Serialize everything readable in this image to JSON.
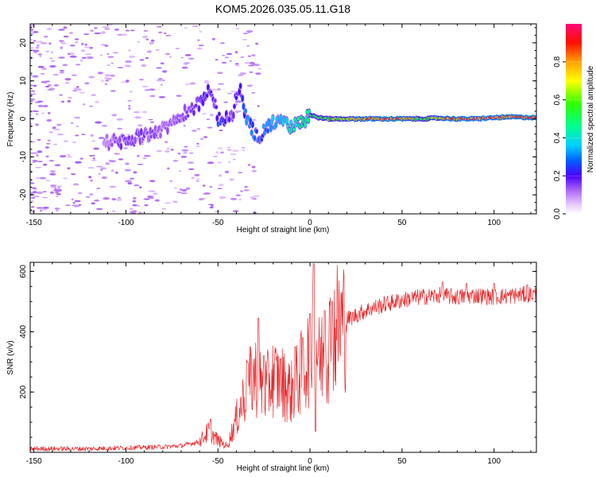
{
  "title": "KOM5.2026.035.05.11.G18",
  "colors": {
    "snr_line": "#e8282b",
    "spectrum_palette": [
      "#ffffff",
      "#d9b8f5",
      "#a56bf0",
      "#6a1fe0",
      "#2400ff",
      "#0070ff",
      "#00c8ff",
      "#00ffaa",
      "#3cff00",
      "#ffff00",
      "#ffa000",
      "#ff0000",
      "#ff0a78"
    ]
  },
  "chart_data": [
    {
      "id": "spectrogram",
      "type": "heatmap",
      "title": "KOM5.2026.035.05.11.G18",
      "xlabel": "Height of straight line (km)",
      "ylabel": "Frequency (Hz)",
      "xlim": [
        -152,
        123
      ],
      "ylim": [
        -25,
        25
      ],
      "xticks": [
        -150,
        -100,
        -50,
        0,
        50,
        100
      ],
      "xtick_labels": [
        "-150",
        "-100",
        "-50",
        "0",
        "50",
        "100"
      ],
      "yticks": [
        -20,
        -10,
        0,
        10,
        20
      ],
      "ytick_labels": [
        "-20",
        "-10",
        "0",
        "10",
        "20"
      ],
      "ridge": {
        "x": [
          -110,
          -100,
          -90,
          -80,
          -70,
          -60,
          -55,
          -52,
          -50,
          -45,
          -42,
          -40,
          -38,
          -35,
          -30,
          -28,
          -25,
          -20,
          -15,
          -10,
          -5,
          0,
          5,
          10,
          20,
          30,
          40,
          50,
          60,
          70,
          80,
          90,
          100,
          110,
          123
        ],
        "y": [
          -6,
          -6,
          -4,
          -3,
          1,
          4,
          7,
          5,
          0,
          0,
          0,
          7,
          8,
          1,
          -4,
          -5,
          -3,
          -1,
          -1,
          -2,
          -1,
          1,
          0.3,
          0,
          0,
          0,
          0,
          0,
          0,
          0.2,
          0,
          0,
          0.3,
          0.5,
          0.3
        ],
        "amplitude": [
          0.12,
          0.18,
          0.15,
          0.14,
          0.15,
          0.2,
          0.22,
          0.16,
          0.25,
          0.2,
          0.15,
          0.22,
          0.2,
          0.3,
          0.3,
          0.28,
          0.3,
          0.35,
          0.4,
          0.45,
          0.5,
          0.52,
          0.58,
          0.62,
          0.7,
          0.85,
          0.9,
          0.9,
          0.55,
          0.75,
          0.9,
          0.92,
          0.88,
          0.9,
          0.88
        ]
      },
      "colorbar": {
        "label": "Normalized spectral amplitude",
        "range": [
          0,
          1
        ],
        "ticks": [
          0,
          0.2,
          0.4,
          0.6,
          0.8
        ],
        "tick_labels": [
          "0.0",
          "0.2",
          "0.4",
          "0.6",
          "0.8"
        ]
      }
    },
    {
      "id": "snr",
      "type": "line",
      "xlabel": "Height of straight line (km)",
      "ylabel": "SNR (v/v)",
      "xlim": [
        -152,
        123
      ],
      "ylim": [
        0,
        630
      ],
      "xticks": [
        -150,
        -100,
        -50,
        0,
        50,
        100
      ],
      "xtick_labels": [
        "-150",
        "-100",
        "-50",
        "0",
        "50",
        "100"
      ],
      "yticks": [
        200,
        400,
        600
      ],
      "ytick_labels": [
        "200",
        "400",
        "600"
      ],
      "series": [
        {
          "name": "SNR",
          "envelope_x": [
            -152,
            -120,
            -100,
            -80,
            -70,
            -60,
            -55,
            -50,
            -45,
            -40,
            -35,
            -30,
            -25,
            -20,
            -15,
            -10,
            -5,
            0,
            2,
            5,
            10,
            15,
            20,
            25,
            30,
            40,
            50,
            60,
            70,
            80,
            90,
            100,
            110,
            123
          ],
          "envelope_y": [
            12,
            12,
            15,
            18,
            22,
            35,
            70,
            40,
            20,
            110,
            200,
            260,
            200,
            250,
            230,
            200,
            260,
            330,
            440,
            300,
            360,
            420,
            440,
            455,
            470,
            490,
            505,
            515,
            520,
            515,
            520,
            515,
            520,
            525
          ],
          "spikes": [
            {
              "x": -54,
              "y": 110
            },
            {
              "x": -34,
              "y": 300
            },
            {
              "x": -28,
              "y": 445
            },
            {
              "x": -25,
              "y": 320
            },
            {
              "x": -16,
              "y": 310
            },
            {
              "x": -8,
              "y": 350
            },
            {
              "x": -4,
              "y": 380
            },
            {
              "x": 0,
              "y": 460
            },
            {
              "x": 2,
              "y": 625
            },
            {
              "x": 3,
              "y": 70
            },
            {
              "x": 8,
              "y": 470
            },
            {
              "x": 12,
              "y": 500
            },
            {
              "x": 72,
              "y": 565
            },
            {
              "x": 85,
              "y": 560
            },
            {
              "x": 100,
              "y": 560
            },
            {
              "x": 118,
              "y": 555
            }
          ]
        }
      ]
    }
  ]
}
